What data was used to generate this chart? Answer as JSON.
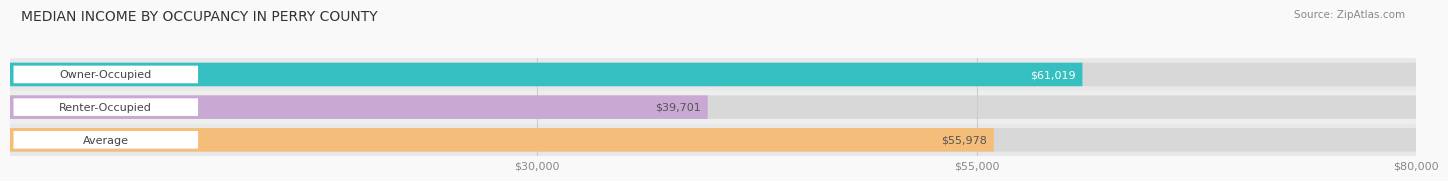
{
  "title": "MEDIAN INCOME BY OCCUPANCY IN PERRY COUNTY",
  "source": "Source: ZipAtlas.com",
  "categories": [
    "Owner-Occupied",
    "Renter-Occupied",
    "Average"
  ],
  "values": [
    61019,
    39701,
    55978
  ],
  "bar_colors": [
    "#35bfc0",
    "#c9a8d4",
    "#f5bd7a"
  ],
  "bar_labels": [
    "$61,019",
    "$39,701",
    "$55,978"
  ],
  "value_label_colors": [
    "#ffffff",
    "#555555",
    "#555555"
  ],
  "xlim": [
    0,
    80000
  ],
  "xticks": [
    30000,
    55000,
    80000
  ],
  "xtick_labels": [
    "$30,000",
    "$55,000",
    "$80,000"
  ],
  "bg_color": "#f2f2f2",
  "bar_bg_color": "#e0e0e0",
  "row_bg_colors": [
    "#e8e8e8",
    "#eeeeee",
    "#e8e8e8"
  ],
  "title_fontsize": 10,
  "label_fontsize": 8,
  "value_fontsize": 8,
  "source_fontsize": 7.5
}
